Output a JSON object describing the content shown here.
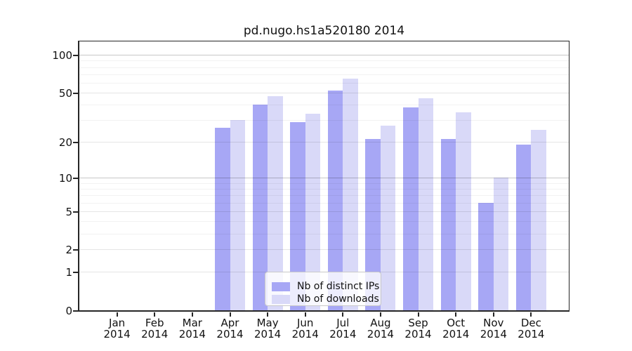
{
  "page": {
    "background": "#ffffff"
  },
  "chart_data": {
    "type": "bar",
    "title": "pd.nugo.hs1a520180 2014",
    "categories": [
      "Jan 2014",
      "Feb 2014",
      "Mar 2014",
      "Apr 2014",
      "May 2014",
      "Jun 2014",
      "Jul 2014",
      "Aug 2014",
      "Sep 2014",
      "Oct 2014",
      "Nov 2014",
      "Dec 2014"
    ],
    "series": [
      {
        "name": "Nb of distinct IPs",
        "color": "#a7a7f5",
        "values": [
          0,
          0,
          0,
          26,
          40,
          29,
          52,
          21,
          38,
          21,
          6,
          19
        ]
      },
      {
        "name": "Nb of downloads",
        "color": "#d9d9f8",
        "values": [
          0,
          0,
          0,
          30,
          47,
          34,
          65,
          27,
          45,
          35,
          10,
          25
        ]
      }
    ],
    "xlabel": "",
    "ylabel": "",
    "y_scale": "log1p",
    "ylim": [
      0,
      128
    ],
    "y_ticks": [
      100,
      50,
      20,
      10,
      5,
      2,
      1,
      0
    ],
    "grid": {
      "on": true,
      "minor_values": [
        3,
        4,
        6,
        7,
        8,
        9,
        30,
        40,
        60,
        70,
        80,
        90
      ],
      "major_values": [
        1,
        2,
        5,
        20,
        50
      ],
      "emphasis_values": [
        10,
        100
      ],
      "minor_color": "rgba(0,0,0,0.05)",
      "major_color": "rgba(0,0,0,0.10)",
      "emphasis_color": "rgba(0,0,0,0.22)"
    },
    "legend": {
      "position": "lower center",
      "border_color": "#c9c9c9"
    }
  }
}
